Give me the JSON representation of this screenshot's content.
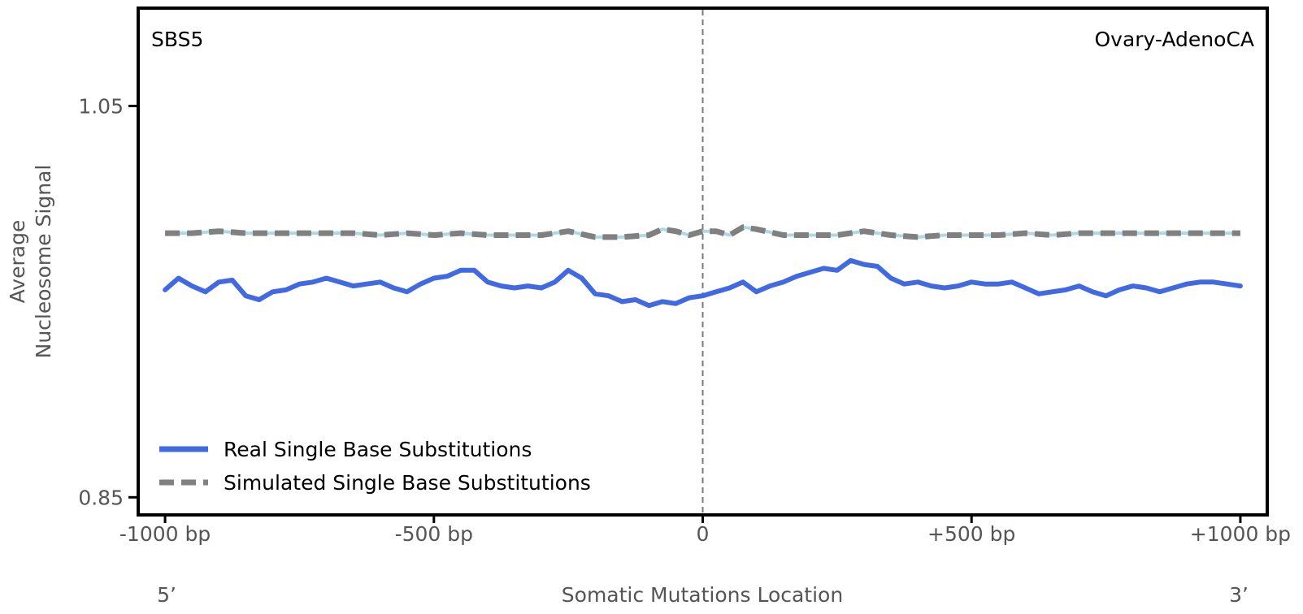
{
  "chart_data": {
    "type": "line",
    "signature": "SBS5",
    "cancer_type": "Ovary-AdenoCA",
    "xlabel": "Somatic Mutations Location",
    "ylabel_line1": "Average",
    "ylabel_line2": "Nucleosome Signal",
    "xlim": [
      -1050,
      1050
    ],
    "ylim": [
      0.841,
      1.1
    ],
    "x_ticks": [
      {
        "value": -1000,
        "label": "-1000 bp"
      },
      {
        "value": -500,
        "label": "-500 bp"
      },
      {
        "value": 0,
        "label": "0"
      },
      {
        "value": 500,
        "label": "+500 bp"
      },
      {
        "value": 1000,
        "label": "+1000 bp"
      }
    ],
    "y_ticks": [
      {
        "value": 1.05,
        "label": "1.05"
      },
      {
        "value": 0.85,
        "label": "0.85"
      }
    ],
    "strand_left": "5’",
    "strand_right": "3’",
    "reference_line_x": 0,
    "series": [
      {
        "name": "Real Single Base Substitutions",
        "color": "#4169e1",
        "style": "solid",
        "x": [
          -1000,
          -975,
          -950,
          -925,
          -900,
          -875,
          -850,
          -825,
          -800,
          -775,
          -750,
          -725,
          -700,
          -675,
          -650,
          -625,
          -600,
          -575,
          -550,
          -525,
          -500,
          -475,
          -450,
          -425,
          -400,
          -375,
          -350,
          -325,
          -300,
          -275,
          -250,
          -225,
          -200,
          -175,
          -150,
          -125,
          -100,
          -75,
          -50,
          -25,
          0,
          25,
          50,
          75,
          100,
          125,
          150,
          175,
          200,
          225,
          250,
          275,
          300,
          325,
          350,
          375,
          400,
          425,
          450,
          475,
          500,
          525,
          550,
          575,
          600,
          625,
          650,
          675,
          700,
          725,
          750,
          775,
          800,
          825,
          850,
          875,
          900,
          925,
          950,
          975,
          1000
        ],
        "y": [
          0.956,
          0.962,
          0.958,
          0.955,
          0.96,
          0.961,
          0.953,
          0.951,
          0.955,
          0.956,
          0.959,
          0.96,
          0.962,
          0.96,
          0.958,
          0.959,
          0.96,
          0.957,
          0.955,
          0.959,
          0.962,
          0.963,
          0.966,
          0.966,
          0.96,
          0.958,
          0.957,
          0.958,
          0.957,
          0.96,
          0.966,
          0.962,
          0.954,
          0.953,
          0.95,
          0.951,
          0.948,
          0.95,
          0.949,
          0.952,
          0.953,
          0.955,
          0.957,
          0.96,
          0.955,
          0.958,
          0.96,
          0.963,
          0.965,
          0.967,
          0.966,
          0.971,
          0.969,
          0.968,
          0.962,
          0.959,
          0.96,
          0.958,
          0.957,
          0.958,
          0.96,
          0.959,
          0.959,
          0.96,
          0.957,
          0.954,
          0.955,
          0.956,
          0.958,
          0.955,
          0.953,
          0.956,
          0.958,
          0.957,
          0.955,
          0.957,
          0.959,
          0.96,
          0.96,
          0.959,
          0.958
        ]
      },
      {
        "name": "Simulated Single Base Substitutions",
        "color": "#808080",
        "style": "dashed",
        "x": [
          -1000,
          -950,
          -900,
          -850,
          -800,
          -750,
          -700,
          -650,
          -600,
          -550,
          -500,
          -450,
          -400,
          -350,
          -300,
          -250,
          -200,
          -150,
          -100,
          -75,
          -50,
          -25,
          0,
          25,
          50,
          75,
          100,
          150,
          200,
          250,
          300,
          350,
          400,
          450,
          500,
          550,
          600,
          650,
          700,
          750,
          800,
          850,
          900,
          950,
          1000
        ],
        "y": [
          0.985,
          0.985,
          0.986,
          0.985,
          0.985,
          0.985,
          0.985,
          0.985,
          0.984,
          0.985,
          0.984,
          0.985,
          0.984,
          0.984,
          0.984,
          0.986,
          0.983,
          0.983,
          0.984,
          0.987,
          0.986,
          0.984,
          0.986,
          0.986,
          0.984,
          0.988,
          0.987,
          0.984,
          0.984,
          0.984,
          0.986,
          0.984,
          0.983,
          0.984,
          0.984,
          0.984,
          0.985,
          0.984,
          0.985,
          0.985,
          0.985,
          0.985,
          0.985,
          0.985,
          0.985
        ]
      }
    ],
    "legend": {
      "placement": "lower-left"
    }
  }
}
